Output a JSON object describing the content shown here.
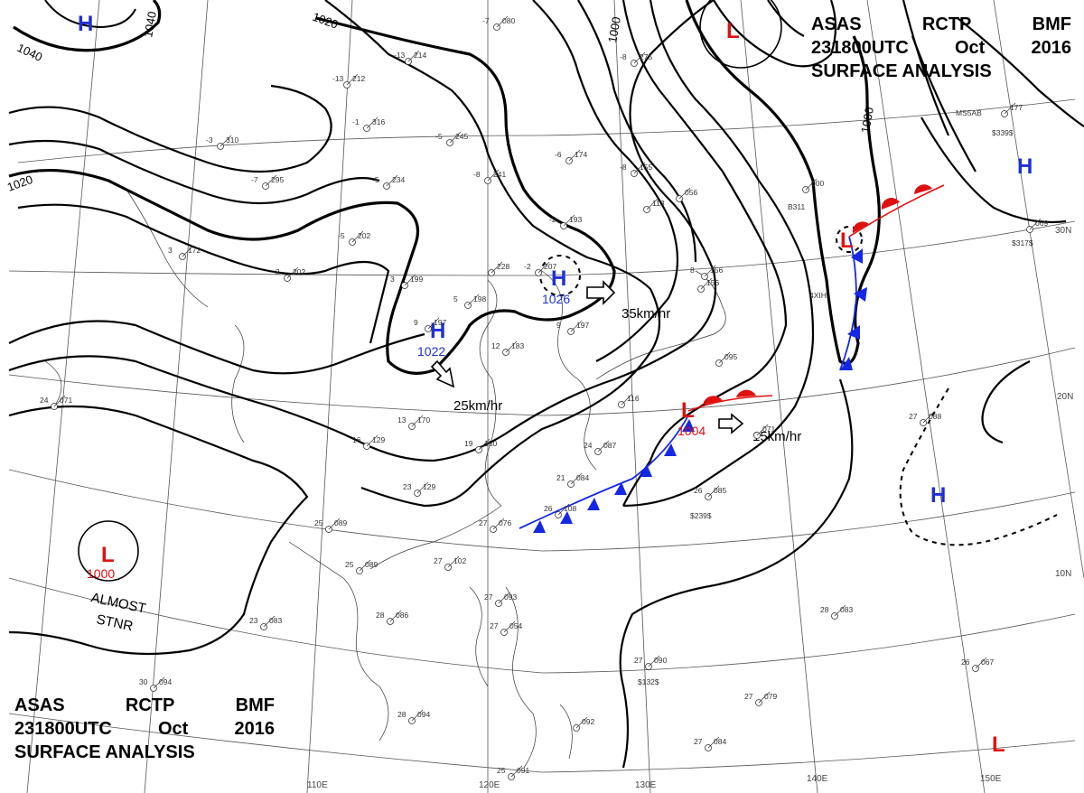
{
  "header": {
    "line1": [
      "ASAS",
      "RCTP",
      "BMF"
    ],
    "line2": [
      "231800UTC",
      "Oct",
      "2016"
    ],
    "line3": "SURFACE ANALYSIS"
  },
  "isobar_labels": [
    "1040",
    "1040",
    "1020",
    "1020",
    "1000",
    "1000"
  ],
  "pressure_centers": [
    {
      "type": "H",
      "value": ""
    },
    {
      "type": "H",
      "value": "1026"
    },
    {
      "type": "H",
      "value": "1022"
    },
    {
      "type": "L",
      "value": ""
    },
    {
      "type": "L",
      "value": ""
    },
    {
      "type": "L",
      "value": "1004"
    },
    {
      "type": "H",
      "value": ""
    },
    {
      "type": "H",
      "value": ""
    },
    {
      "type": "L",
      "value": "1000"
    },
    {
      "type": "L",
      "value": ""
    }
  ],
  "motion_labels": [
    "35km/hr",
    "25km/hr",
    "15km/hr"
  ],
  "notes": [
    "ALMOST",
    "STNR"
  ],
  "lat_labels": [
    "30N",
    "20N",
    "10N"
  ],
  "lon_labels": [
    "110E",
    "120E",
    "130E",
    "140E",
    "150E"
  ],
  "colors": {
    "high": "#1f2fd6",
    "low": "#e01010",
    "cold_front": "#1428e6",
    "warm_front": "#e01010",
    "isobar": "#000000"
  },
  "stations": [
    {
      "t": "-7",
      "p": "080"
    },
    {
      "t": "-13",
      "p": "214"
    },
    {
      "t": "-13",
      "p": "212"
    },
    {
      "t": "-1",
      "p": "316"
    },
    {
      "t": "-3",
      "p": "310"
    },
    {
      "t": "-5",
      "p": "245"
    },
    {
      "t": "-6",
      "p": "174"
    },
    {
      "t": "-7",
      "p": "295"
    },
    {
      "t": "-5",
      "p": "234"
    },
    {
      "t": "-8",
      "p": "241"
    },
    {
      "t": "-8",
      "p": "155"
    },
    {
      "t": "-2",
      "p": "193"
    },
    {
      "t": "-5",
      "p": "202"
    },
    {
      "t": "",
      "p": "228"
    },
    {
      "t": "-2",
      "p": "207"
    },
    {
      "t": "3",
      "p": "199"
    },
    {
      "t": "3",
      "p": "172"
    },
    {
      "t": "-2",
      "p": "202"
    },
    {
      "t": "5",
      "p": "198"
    },
    {
      "t": "9",
      "p": "197"
    },
    {
      "t": "9",
      "p": "197"
    },
    {
      "t": "12",
      "p": "183"
    },
    {
      "t": "8",
      "p": "156"
    },
    {
      "t": "13",
      "p": "170"
    },
    {
      "t": "16",
      "p": "129"
    },
    {
      "t": "19",
      "p": "150"
    },
    {
      "t": "23",
      "p": "129"
    },
    {
      "t": "24",
      "p": "071"
    },
    {
      "t": "24",
      "p": "087"
    },
    {
      "t": "21",
      "p": "084"
    },
    {
      "t": "26",
      "p": "108"
    },
    {
      "t": "27",
      "p": "076"
    },
    {
      "t": "25",
      "p": "089"
    },
    {
      "t": "27",
      "p": "102"
    },
    {
      "t": "25",
      "p": "089"
    },
    {
      "t": "28",
      "p": "086"
    },
    {
      "t": "27",
      "p": "093"
    },
    {
      "t": "27",
      "p": "054"
    },
    {
      "t": "28",
      "p": "094"
    },
    {
      "t": "27",
      "p": "090"
    },
    {
      "t": "26",
      "p": "085"
    },
    {
      "t": "28",
      "p": "083"
    },
    {
      "t": "27",
      "p": "088"
    },
    {
      "t": "27",
      "p": "079"
    },
    {
      "t": "27",
      "p": "084"
    },
    {
      "t": "26",
      "p": "067"
    },
    {
      "t": "25",
      "p": "091"
    },
    {
      "t": "23",
      "p": "083"
    },
    {
      "t": "30",
      "p": "094"
    },
    {
      "t": "",
      "p": "092"
    },
    {
      "t": "",
      "p": "156"
    },
    {
      "t": "",
      "p": "095"
    },
    {
      "t": "",
      "p": "116"
    },
    {
      "t": "",
      "p": "000"
    },
    {
      "t": "",
      "p": "177"
    },
    {
      "t": "",
      "p": "056"
    },
    {
      "t": "",
      "p": "113"
    },
    {
      "t": "-8",
      "p": "275"
    },
    {
      "t": "",
      "p": "069"
    },
    {
      "t": "",
      "p": "071"
    }
  ],
  "ship_ids": [
    "$239$",
    "$132$",
    "$317$",
    "$339$",
    "B311",
    "MS5AB",
    "4XIH"
  ]
}
